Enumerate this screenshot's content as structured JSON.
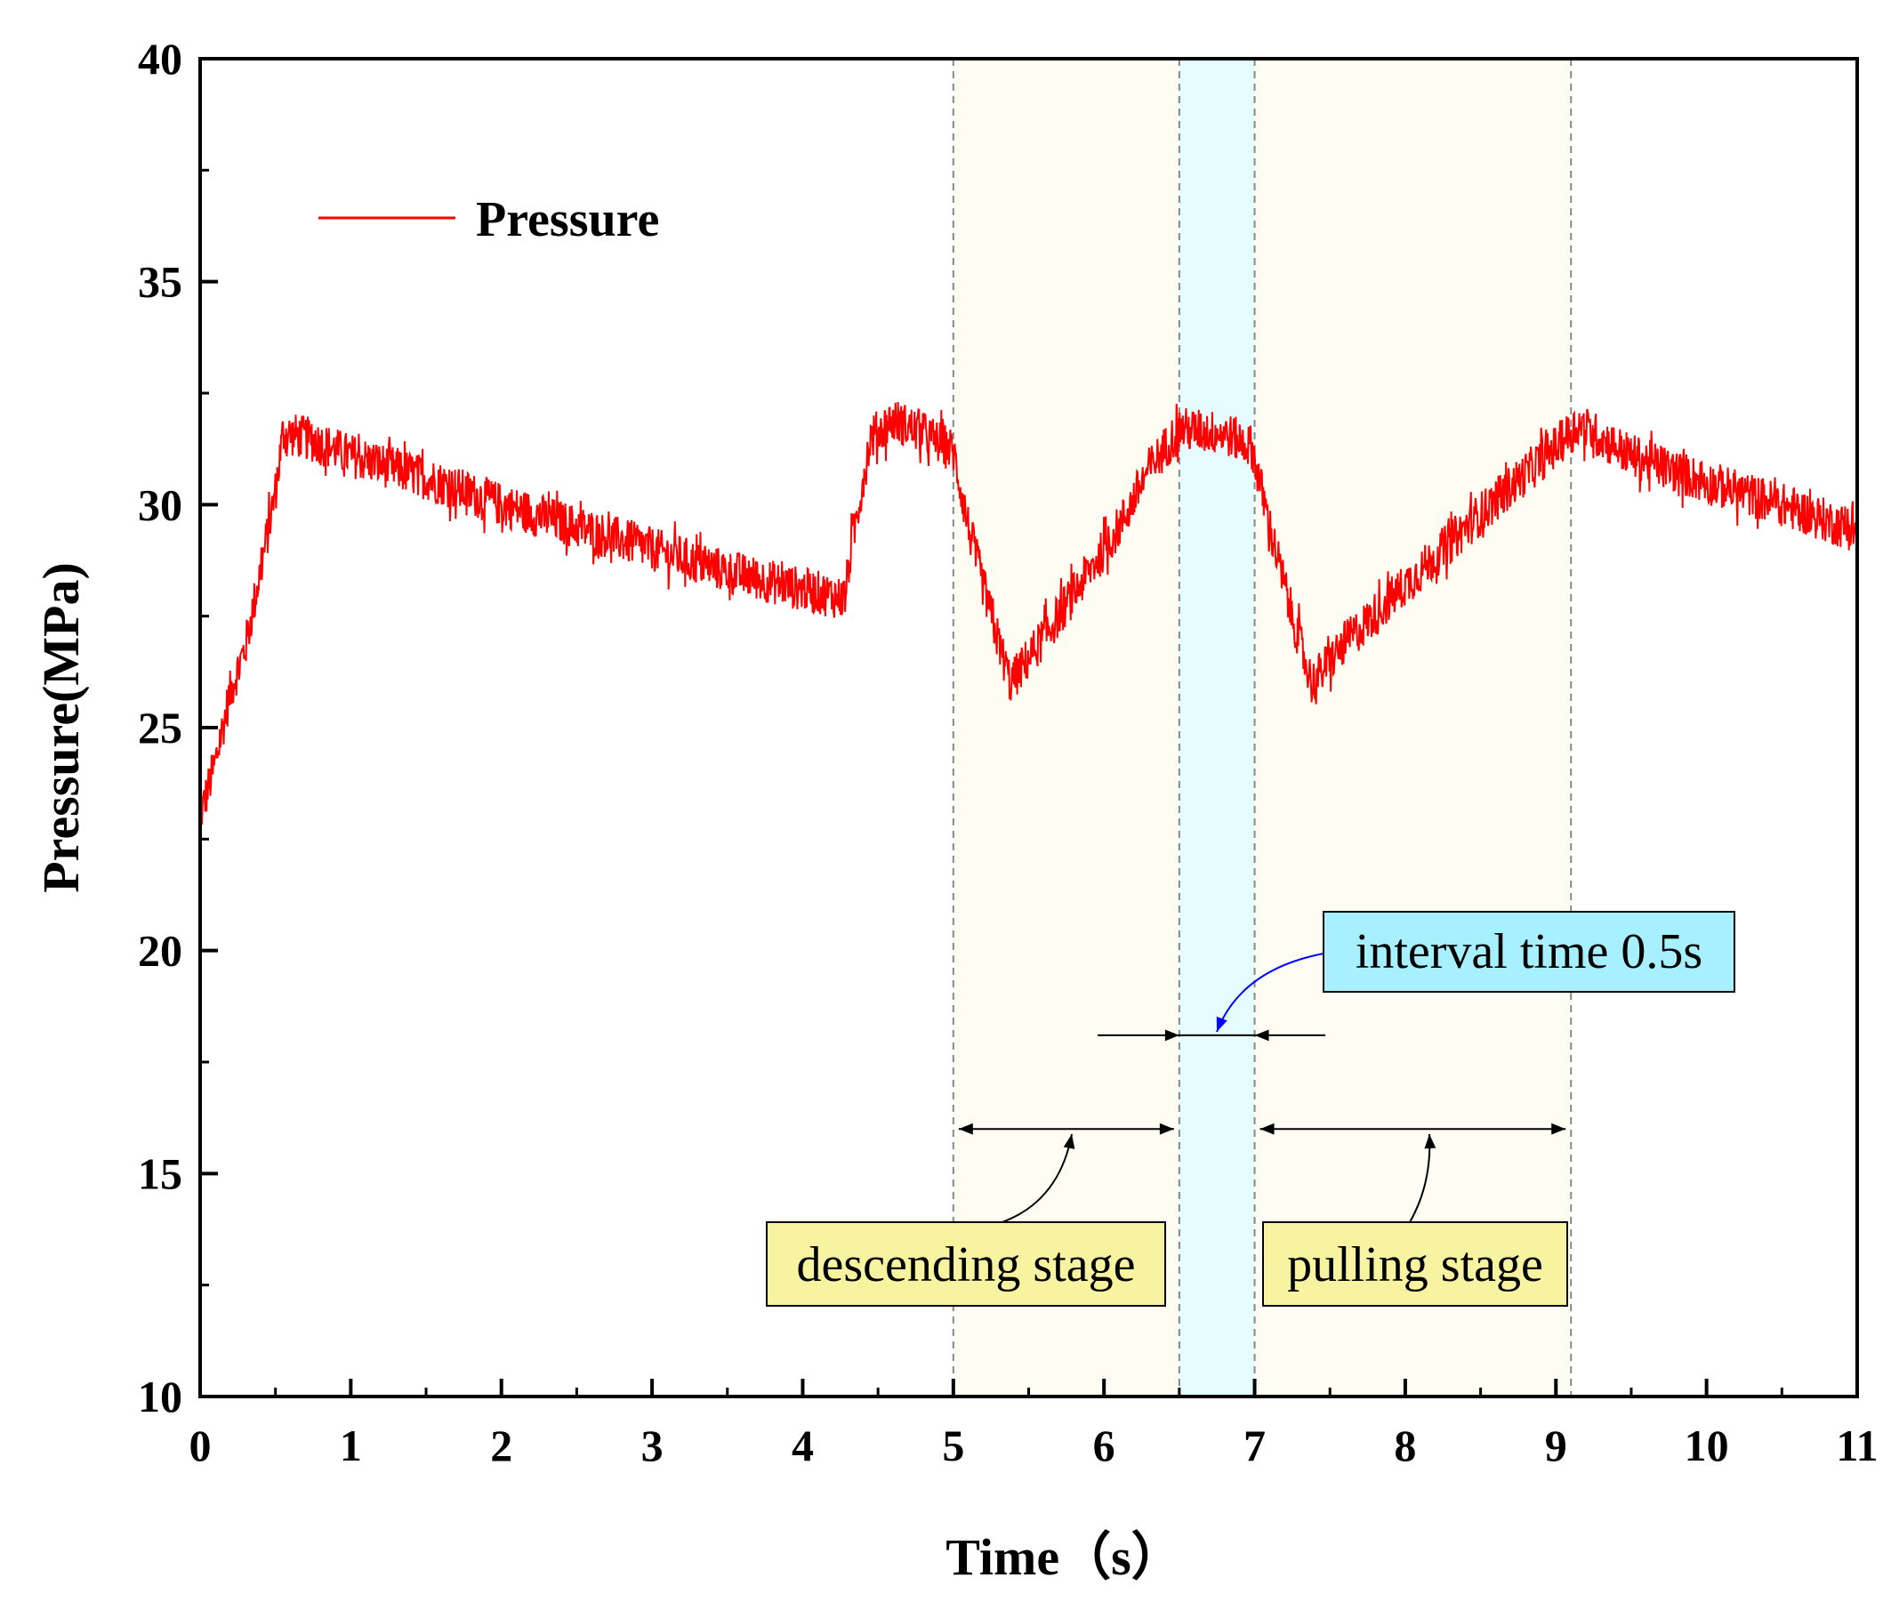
{
  "chart_data": {
    "type": "line",
    "xlabel": "Time（s）",
    "ylabel": "Pressure(MPa)",
    "xlim": [
      0,
      11
    ],
    "ylim": [
      10,
      40
    ],
    "x_ticks": [
      0,
      1,
      2,
      3,
      4,
      5,
      6,
      7,
      8,
      9,
      10,
      11
    ],
    "y_ticks": [
      10,
      15,
      20,
      25,
      30,
      35,
      40
    ],
    "x_tick_labels": [
      "0",
      "1",
      "2",
      "3",
      "4",
      "5",
      "6",
      "7",
      "8",
      "9",
      "10",
      "11"
    ],
    "y_tick_labels": [
      "10",
      "15",
      "20",
      "25",
      "30",
      "35",
      "40"
    ],
    "legend": {
      "label": "Pressure",
      "position": "top-left",
      "color": "#ff0000"
    },
    "series": [
      {
        "name": "Pressure",
        "color": "#ff0000",
        "noise_amplitude": 0.5,
        "points": [
          [
            0.0,
            23.0
          ],
          [
            0.1,
            24.2
          ],
          [
            0.2,
            25.8
          ],
          [
            0.3,
            26.8
          ],
          [
            0.4,
            28.5
          ],
          [
            0.5,
            30.3
          ],
          [
            0.55,
            31.6
          ],
          [
            0.7,
            31.5
          ],
          [
            1.0,
            31.1
          ],
          [
            1.5,
            30.6
          ],
          [
            2.0,
            30.0
          ],
          [
            2.5,
            29.5
          ],
          [
            3.0,
            29.0
          ],
          [
            3.5,
            28.5
          ],
          [
            4.0,
            28.1
          ],
          [
            4.28,
            27.9
          ],
          [
            4.32,
            29.0
          ],
          [
            4.45,
            31.5
          ],
          [
            4.6,
            31.9
          ],
          [
            4.8,
            31.6
          ],
          [
            5.0,
            31.2
          ],
          [
            5.1,
            29.5
          ],
          [
            5.25,
            27.5
          ],
          [
            5.38,
            26.0
          ],
          [
            5.55,
            26.8
          ],
          [
            5.8,
            28.0
          ],
          [
            6.1,
            29.5
          ],
          [
            6.3,
            30.8
          ],
          [
            6.5,
            31.7
          ],
          [
            6.8,
            31.6
          ],
          [
            6.98,
            31.3
          ],
          [
            7.1,
            29.5
          ],
          [
            7.25,
            27.5
          ],
          [
            7.38,
            26.0
          ],
          [
            7.6,
            26.9
          ],
          [
            8.0,
            28.2
          ],
          [
            8.5,
            29.8
          ],
          [
            9.0,
            31.3
          ],
          [
            9.15,
            31.8
          ],
          [
            9.5,
            31.1
          ],
          [
            10.0,
            30.5
          ],
          [
            10.5,
            30.0
          ],
          [
            11.0,
            29.4
          ]
        ]
      }
    ],
    "shaded_regions": [
      {
        "name": "descending stage",
        "x_start": 5.0,
        "x_end": 6.5,
        "color": "#fdfdf3"
      },
      {
        "name": "interval",
        "x_start": 6.5,
        "x_end": 7.0,
        "color": "#e6fdff"
      },
      {
        "name": "pulling stage",
        "x_start": 7.0,
        "x_end": 9.1,
        "color": "#fdfdf3"
      }
    ],
    "vertical_dashed_lines": [
      5.0,
      6.5,
      7.0,
      9.1
    ],
    "annotations": [
      {
        "text": "descending stage",
        "box_color": "#f8f3a1",
        "span": [
          5.0,
          6.5
        ],
        "arrow_y": 16.0,
        "pointer_x": 5.8
      },
      {
        "text": "pulling stage",
        "box_color": "#f8f3a1",
        "span": [
          7.0,
          9.1
        ],
        "arrow_y": 16.0,
        "pointer_x": 8.2
      },
      {
        "text": "interval time 0.5s",
        "box_color": "#a6f0ff",
        "span": [
          6.5,
          7.0
        ],
        "arrow_y": 18.1,
        "pointer_x": 6.8
      }
    ]
  }
}
